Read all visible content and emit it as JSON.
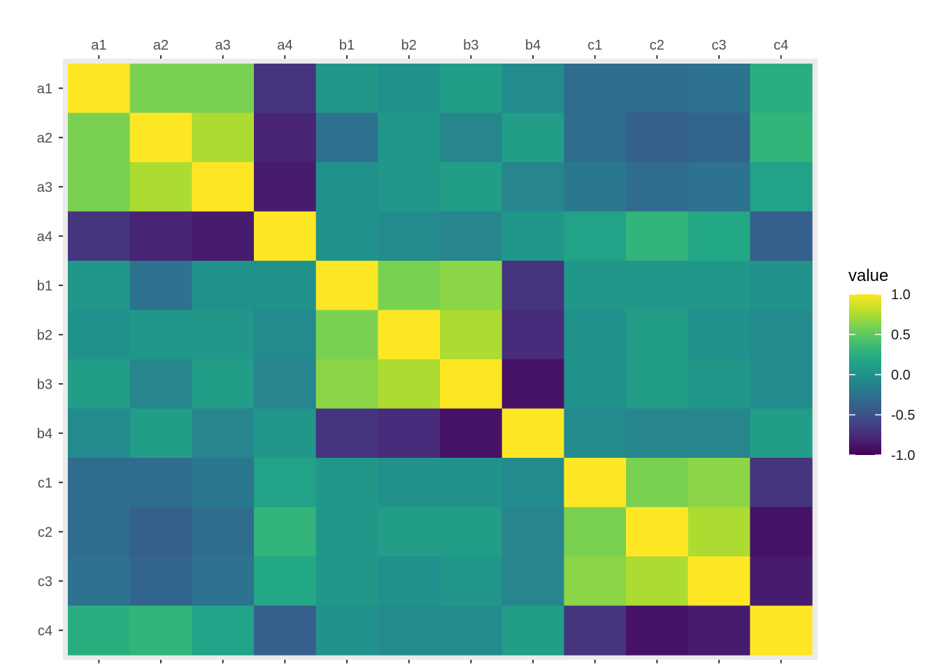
{
  "chart_data": {
    "type": "heatmap",
    "title": "",
    "xlabel": "",
    "ylabel": "",
    "x_axis_position": "top",
    "x": [
      "a1",
      "a2",
      "a3",
      "a4",
      "b1",
      "b2",
      "b3",
      "b4",
      "c1",
      "c2",
      "c3",
      "c4"
    ],
    "y": [
      "a1",
      "a2",
      "a3",
      "a4",
      "b1",
      "b2",
      "b3",
      "b4",
      "c1",
      "c2",
      "c3",
      "c4"
    ],
    "values": [
      [
        1.0,
        0.6,
        0.6,
        -0.7,
        0.05,
        0.0,
        0.1,
        -0.05,
        -0.3,
        -0.3,
        -0.25,
        0.25
      ],
      [
        0.6,
        1.0,
        0.75,
        -0.8,
        -0.25,
        0.05,
        -0.1,
        0.1,
        -0.3,
        -0.4,
        -0.35,
        0.3
      ],
      [
        0.6,
        0.75,
        1.0,
        -0.85,
        0.0,
        0.05,
        0.1,
        -0.1,
        -0.2,
        -0.3,
        -0.25,
        0.15
      ],
      [
        -0.7,
        -0.8,
        -0.85,
        1.0,
        0.0,
        -0.05,
        -0.1,
        0.05,
        0.15,
        0.3,
        0.2,
        -0.4
      ],
      [
        0.05,
        -0.25,
        0.0,
        0.0,
        1.0,
        0.6,
        0.65,
        -0.7,
        0.05,
        0.05,
        0.05,
        0.0
      ],
      [
        0.0,
        0.05,
        0.05,
        -0.05,
        0.6,
        1.0,
        0.75,
        -0.75,
        0.0,
        0.1,
        0.0,
        -0.05
      ],
      [
        0.1,
        -0.1,
        0.1,
        -0.1,
        0.65,
        0.75,
        1.0,
        -0.9,
        0.0,
        0.1,
        0.05,
        -0.05
      ],
      [
        -0.05,
        0.1,
        -0.1,
        0.05,
        -0.7,
        -0.75,
        -0.9,
        1.0,
        -0.05,
        -0.1,
        -0.1,
        0.1
      ],
      [
        -0.3,
        -0.3,
        -0.2,
        0.15,
        0.05,
        0.0,
        0.0,
        -0.05,
        1.0,
        0.6,
        0.65,
        -0.7
      ],
      [
        -0.3,
        -0.4,
        -0.3,
        0.3,
        0.05,
        0.1,
        0.1,
        -0.1,
        0.6,
        1.0,
        0.75,
        -0.9
      ],
      [
        -0.25,
        -0.35,
        -0.25,
        0.2,
        0.05,
        0.0,
        0.05,
        -0.1,
        0.65,
        0.75,
        1.0,
        -0.85
      ],
      [
        0.25,
        0.3,
        0.15,
        -0.4,
        0.0,
        -0.05,
        -0.05,
        0.1,
        -0.7,
        -0.9,
        -0.85,
        1.0
      ]
    ],
    "color_scale": "viridis",
    "value_range": [
      -1.0,
      1.0
    ],
    "panel_background": "#ebebeb",
    "legend": {
      "title": "value",
      "position": "right",
      "ticks": [
        1.0,
        0.5,
        0.0,
        -0.5,
        -1.0
      ],
      "tick_labels": [
        "1.0",
        "0.5",
        "0.0",
        "-0.5",
        "-1.0"
      ]
    }
  }
}
